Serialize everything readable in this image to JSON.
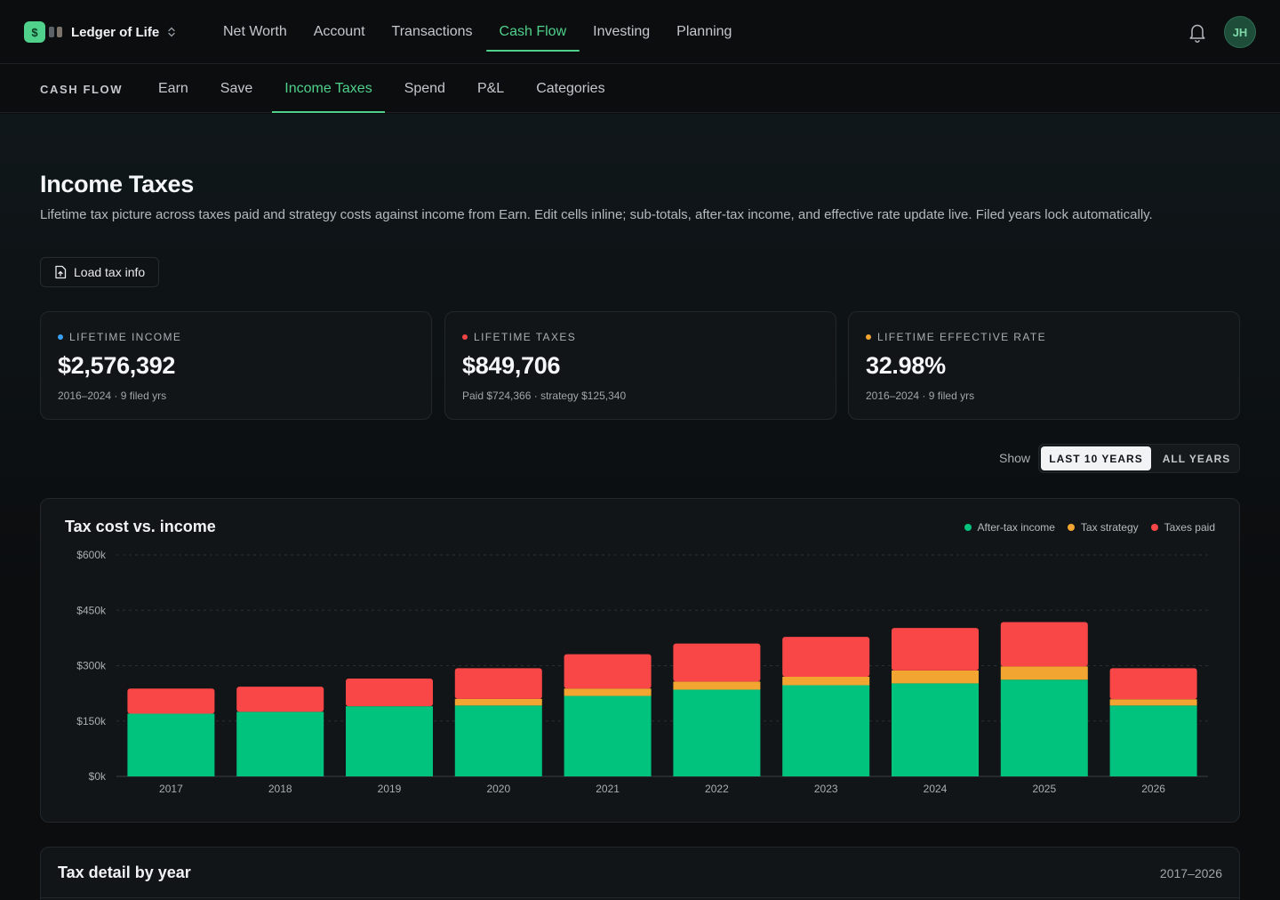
{
  "app": {
    "logo_glyph": "$",
    "name": "Ledger of Life",
    "brand_color": "#4fd18b",
    "avatar_initials": "JH"
  },
  "main_nav": [
    {
      "label": "Net Worth",
      "active": false
    },
    {
      "label": "Account",
      "active": false
    },
    {
      "label": "Transactions",
      "active": false
    },
    {
      "label": "Cash Flow",
      "active": true
    },
    {
      "label": "Investing",
      "active": false
    },
    {
      "label": "Planning",
      "active": false
    }
  ],
  "sub_nav": {
    "section_label": "CASH FLOW",
    "items": [
      {
        "label": "Earn",
        "active": false
      },
      {
        "label": "Save",
        "active": false
      },
      {
        "label": "Income Taxes",
        "active": true
      },
      {
        "label": "Spend",
        "active": false
      },
      {
        "label": "P&L",
        "active": false
      },
      {
        "label": "Categories",
        "active": false
      }
    ]
  },
  "page": {
    "title": "Income Taxes",
    "description": "Lifetime tax picture across taxes paid and strategy costs against income from Earn. Edit cells inline; sub-totals, after-tax income, and effective rate update live. Filed years lock automatically.",
    "load_button": "Load tax info"
  },
  "stats": [
    {
      "label": "LIFETIME INCOME",
      "value": "$2,576,392",
      "sub": "2016–2024 · 9 filed yrs",
      "dot_color": "#3aa0f2"
    },
    {
      "label": "LIFETIME TAXES",
      "value": "$849,706",
      "sub": "Paid $724,366 · strategy $125,340",
      "dot_color": "#f04444"
    },
    {
      "label": "LIFETIME EFFECTIVE RATE",
      "value": "32.98%",
      "sub": "2016–2024 · 9 filed yrs",
      "dot_color": "#f2a531"
    }
  ],
  "range_toggle": {
    "show_label": "Show",
    "options": [
      "LAST 10 YEARS",
      "ALL YEARS"
    ],
    "selected": "LAST 10 YEARS"
  },
  "chart_data": {
    "type": "bar",
    "stacked": true,
    "title": "Tax cost vs. income",
    "categories": [
      "2017",
      "2018",
      "2019",
      "2020",
      "2021",
      "2022",
      "2023",
      "2024",
      "2025",
      "2026"
    ],
    "series": [
      {
        "name": "After-tax income",
        "color": "#02c37e",
        "values": [
          170000,
          175000,
          190000,
          192000,
          218000,
          235000,
          247000,
          252000,
          262000,
          192000
        ]
      },
      {
        "name": "Tax strategy",
        "color": "#f2a531",
        "values": [
          0,
          0,
          0,
          18000,
          20000,
          22000,
          23000,
          35000,
          36000,
          17000
        ]
      },
      {
        "name": "Taxes paid",
        "color": "#f94646",
        "values": [
          68000,
          68000,
          75000,
          83000,
          93000,
          103000,
          108000,
          115000,
          120000,
          84000
        ]
      }
    ],
    "y_ticks": [
      "$0k",
      "$150k",
      "$300k",
      "$450k",
      "$600k"
    ],
    "ylim": [
      0,
      600000
    ],
    "grid": true,
    "legend_position": "top-right"
  },
  "detail": {
    "title": "Tax detail by year",
    "range": "2017–2026"
  }
}
